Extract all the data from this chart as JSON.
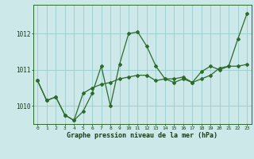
{
  "xlabel": "Graphe pression niveau de la mer (hPa)",
  "background_color": "#cce8e8",
  "grid_color": "#99cccc",
  "line_color": "#2d6b2d",
  "hours": [
    0,
    1,
    2,
    3,
    4,
    5,
    6,
    7,
    8,
    9,
    10,
    11,
    12,
    13,
    14,
    15,
    16,
    17,
    18,
    19,
    20,
    21,
    22,
    23
  ],
  "series1": [
    1010.7,
    1010.15,
    1010.25,
    1009.75,
    1009.6,
    1009.85,
    1010.35,
    1011.1,
    1010.0,
    1011.15,
    1012.0,
    1012.05,
    1011.65,
    1011.1,
    1010.75,
    1010.65,
    1010.75,
    1010.65,
    1010.95,
    1011.1,
    1011.0,
    1011.1,
    1011.85,
    1012.55
  ],
  "series2": [
    1010.7,
    1010.15,
    1010.25,
    1009.75,
    1009.6,
    1010.35,
    1010.5,
    1010.6,
    1010.65,
    1010.75,
    1010.8,
    1010.85,
    1010.85,
    1010.7,
    1010.75,
    1010.75,
    1010.8,
    1010.65,
    1010.75,
    1010.85,
    1011.05,
    1011.1,
    1011.1,
    1011.15
  ],
  "ylim_min": 1009.5,
  "ylim_max": 1012.8,
  "yticks": [
    1010,
    1011,
    1012
  ],
  "xticks": [
    0,
    1,
    2,
    3,
    4,
    5,
    6,
    7,
    8,
    9,
    10,
    11,
    12,
    13,
    14,
    15,
    16,
    17,
    18,
    19,
    20,
    21,
    22,
    23
  ]
}
